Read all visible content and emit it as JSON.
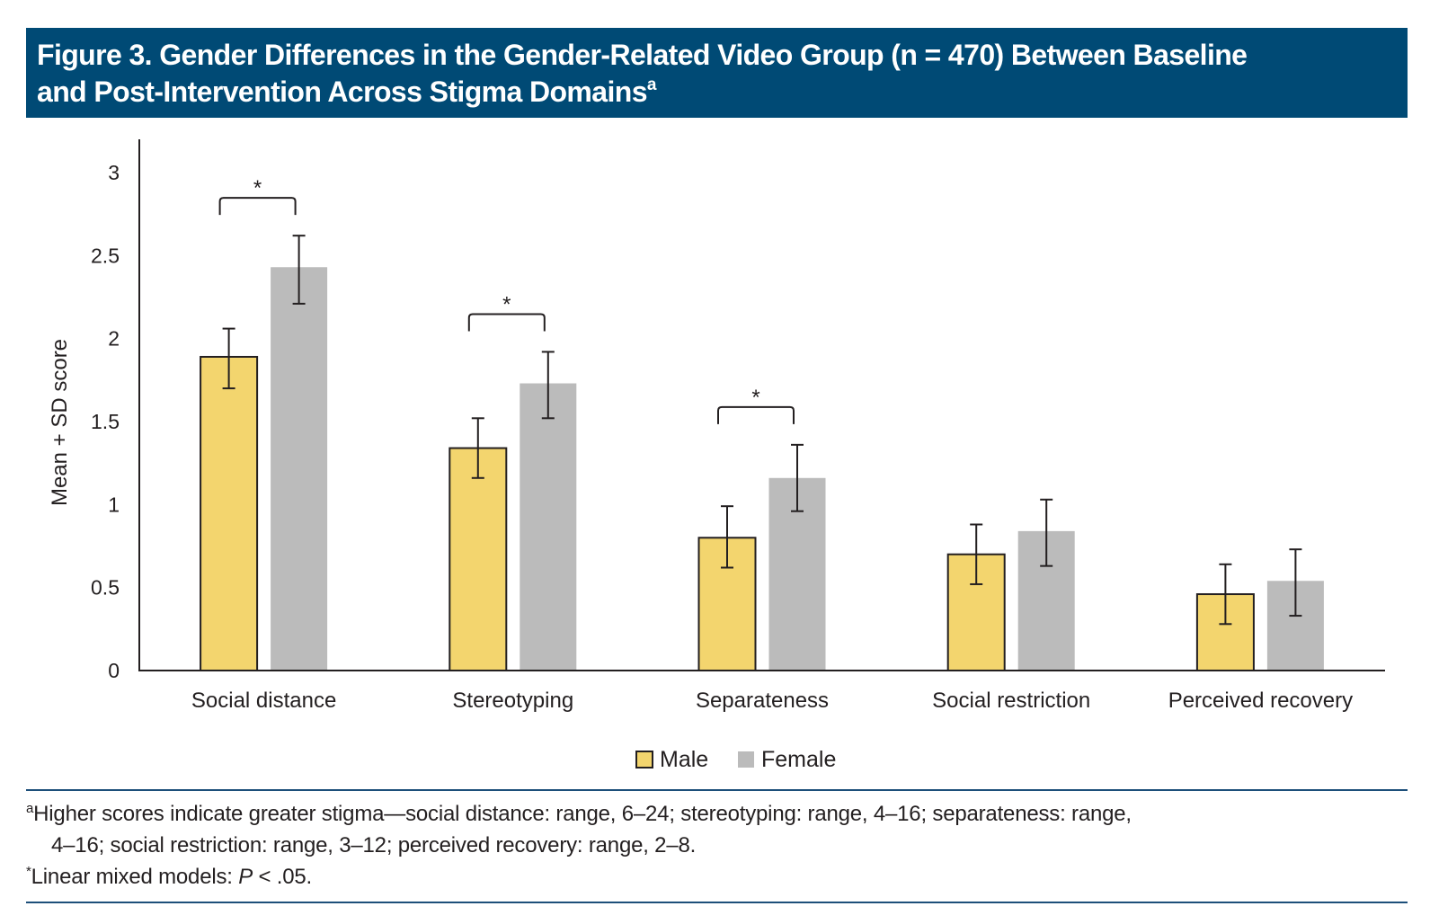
{
  "header": {
    "title_line1": "Figure 3. Gender Differences in the Gender-Related Video Group (n = 470) Between Baseline",
    "title_line2": "and Post-Intervention Across Stigma Domains",
    "title_superscript": "a"
  },
  "colors": {
    "header_bg": "#004a75",
    "male": "#f3d56e",
    "female": "#bbbbbb",
    "rule": "#1d4f7a",
    "ink": "#231f20"
  },
  "chart_data": {
    "type": "bar",
    "title": "Gender Differences in the Gender-Related Video Group (n = 470) Between Baseline and Post-Intervention Across Stigma Domains",
    "xlabel": "",
    "ylabel": "Mean + SD score",
    "ylim": [
      0,
      3
    ],
    "yticks": [
      0,
      0.5,
      1,
      1.5,
      2,
      2.5,
      3
    ],
    "ytick_labels": [
      "0",
      "0.5",
      "1",
      "1.5",
      "2",
      "2.5",
      "3"
    ],
    "grid": false,
    "legend_position": "bottom-center",
    "categories": [
      "Social distance",
      "Stereotyping",
      "Separateness",
      "Social restriction",
      "Perceived recovery"
    ],
    "series": [
      {
        "name": "Male",
        "values": [
          1.89,
          1.34,
          0.8,
          0.7,
          0.46
        ],
        "error_low": [
          1.7,
          1.16,
          0.62,
          0.52,
          0.28
        ],
        "error_high": [
          2.06,
          1.52,
          0.99,
          0.88,
          0.64
        ]
      },
      {
        "name": "Female",
        "values": [
          2.43,
          1.73,
          1.16,
          0.84,
          0.54
        ],
        "error_low": [
          2.21,
          1.52,
          0.96,
          0.63,
          0.33
        ],
        "error_high": [
          2.62,
          1.92,
          1.36,
          1.03,
          0.73
        ]
      }
    ],
    "significance": [
      {
        "category": "Social distance",
        "label": "*"
      },
      {
        "category": "Stereotyping",
        "label": "*"
      },
      {
        "category": "Separateness",
        "label": "*"
      }
    ]
  },
  "footnotes": {
    "a_marker": "a",
    "a_line1": "Higher scores indicate greater stigma—social distance: range, 6–24; stereotyping: range, 4–16; separateness: range,",
    "a_line2": "4–16; social restriction: range, 3–12; perceived recovery: range, 2–8.",
    "star_marker": "*",
    "star_text_prefix": "Linear mixed models: ",
    "star_p": "P",
    "star_text_suffix": " < .05."
  }
}
